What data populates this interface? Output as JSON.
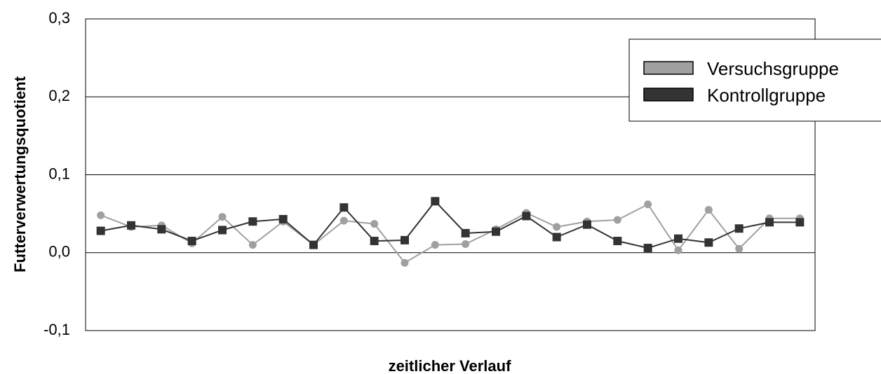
{
  "chart_data": {
    "type": "line",
    "title": "",
    "xlabel": "zeitlicher Verlauf",
    "ylabel": "Futterverwertungsquotient",
    "ylim": [
      -0.1,
      0.3
    ],
    "yticks": [
      -0.1,
      0.0,
      0.1,
      0.2,
      0.3
    ],
    "ytick_labels": [
      "-0,1",
      "0,0",
      "0,1",
      "0,2",
      "0,3"
    ],
    "grid": "horizontal",
    "legend_position": "top-right",
    "x": [
      1,
      2,
      3,
      4,
      5,
      6,
      7,
      8,
      9,
      10,
      11,
      12,
      13,
      14,
      15,
      16,
      17,
      18,
      19,
      20,
      21,
      22,
      23,
      24
    ],
    "series": [
      {
        "name": "Versuchsgruppe",
        "color": "#a0a0a0",
        "marker": "circle",
        "values": [
          0.048,
          0.033,
          0.035,
          0.012,
          0.046,
          0.01,
          0.04,
          0.01,
          0.041,
          0.037,
          -0.013,
          0.01,
          0.011,
          0.03,
          0.051,
          0.033,
          0.04,
          0.042,
          0.062,
          0.003,
          0.055,
          0.005,
          0.044,
          0.044
        ]
      },
      {
        "name": "Kontrollgruppe",
        "color": "#333333",
        "marker": "square",
        "values": [
          0.028,
          0.035,
          0.03,
          0.015,
          0.029,
          0.04,
          0.043,
          0.01,
          0.058,
          0.015,
          0.016,
          0.066,
          0.025,
          0.027,
          0.047,
          0.02,
          0.036,
          0.015,
          0.006,
          0.018,
          0.013,
          0.031,
          0.039,
          0.039
        ]
      }
    ]
  }
}
